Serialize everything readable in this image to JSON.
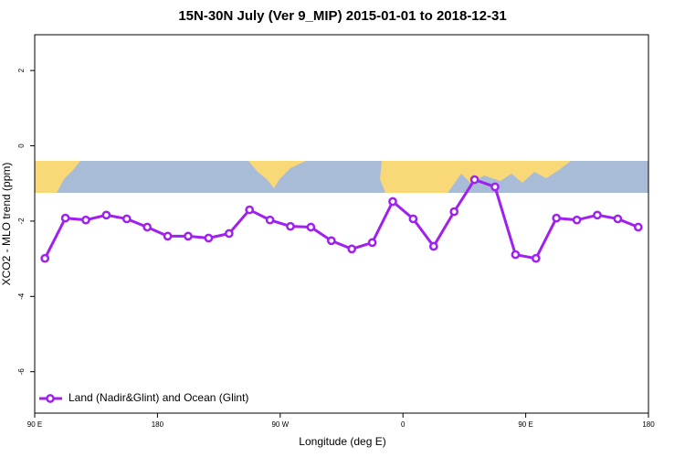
{
  "chart_data": {
    "type": "line",
    "title": "15N-30N July (Ver 9_MIP)   2015-01-01 to 2018-12-31",
    "x_label": "Longitude (deg E)",
    "y_label": "XCO2 - MLO trend (ppm)",
    "x": [
      97.5,
      112.5,
      127.5,
      142.5,
      157.5,
      172.5,
      187.5,
      202.5,
      217.5,
      232.5,
      247.5,
      262.5,
      277.5,
      292.5,
      307.5,
      322.5,
      337.5,
      352.5,
      367.5,
      382.5,
      397.5,
      412.5,
      427.5,
      442.5,
      457.5,
      472.5,
      487.5,
      502.5,
      517.5,
      532.5
    ],
    "series": [
      {
        "name": "Land (Nadir&Glint) and Ocean (Glint)",
        "color": "#a020f0",
        "values": [
          -2.99,
          -1.92,
          -1.97,
          -1.84,
          -1.94,
          -2.16,
          -2.4,
          -2.4,
          -2.45,
          -2.33,
          -1.7,
          -1.97,
          -2.14,
          -2.16,
          -2.52,
          -2.74,
          -2.57,
          -1.48,
          -1.94,
          -2.67,
          -1.75,
          -0.9,
          -1.09,
          -2.89,
          -2.99,
          -1.92,
          -1.97,
          -1.84,
          -1.94,
          -2.16
        ]
      }
    ],
    "xlim": [
      90,
      540
    ],
    "xticks": [
      {
        "value": 90,
        "label": "90 E"
      },
      180,
      {
        "value": 270,
        "label": "90 W"
      },
      {
        "value": 360,
        "label": "0"
      },
      {
        "value": 450,
        "label": "90 E"
      },
      {
        "value": 540,
        "label": "180"
      }
    ],
    "ylim": [
      -7.1,
      2.95
    ],
    "yticks": [
      2,
      0,
      -2,
      -4,
      -6
    ],
    "legend": "bottom-left"
  }
}
